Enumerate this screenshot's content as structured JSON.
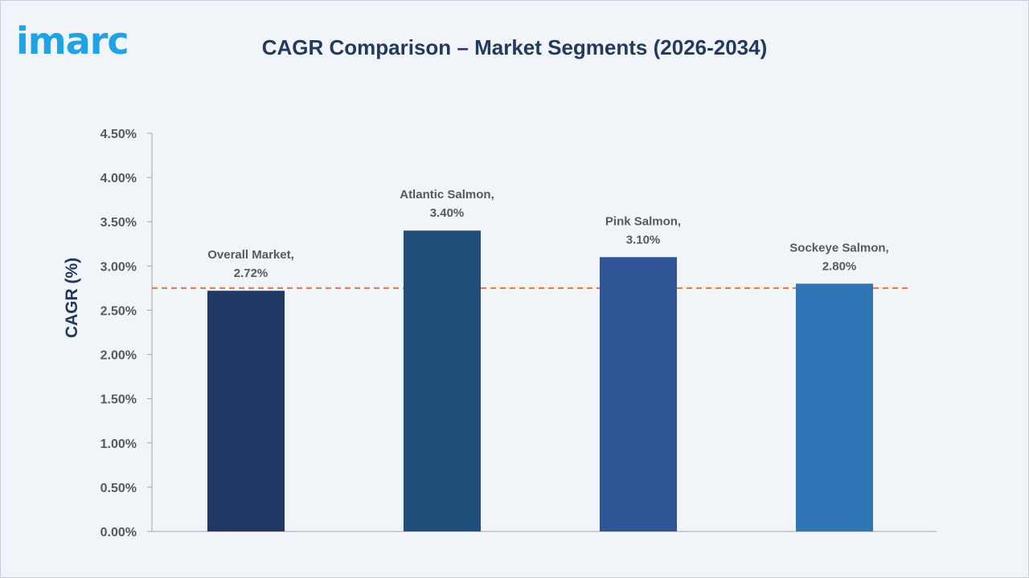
{
  "logo_text": "imarc",
  "title": "CAGR Comparison – Market Segments (2026-2034)",
  "chart_data": {
    "type": "bar",
    "title": "CAGR Comparison – Market Segments (2026-2034)",
    "xlabel": "",
    "ylabel": "CAGR (%)",
    "ylim": [
      0,
      4.5
    ],
    "yticks": [
      0,
      0.5,
      1.0,
      1.5,
      2.0,
      2.5,
      3.0,
      3.5,
      4.0,
      4.5
    ],
    "ytick_labels": [
      "0.00%",
      "0.50%",
      "1.00%",
      "1.50%",
      "2.00%",
      "2.50%",
      "3.00%",
      "3.50%",
      "4.00%",
      "4.50%"
    ],
    "categories": [
      "Overall Market",
      "Atlantic Salmon",
      "Pink Salmon",
      "Sockeye Salmon"
    ],
    "values": [
      2.72,
      3.4,
      3.1,
      2.8
    ],
    "data_labels": [
      [
        "Overall Market,",
        "2.72%"
      ],
      [
        "Atlantic Salmon,",
        "3.40%"
      ],
      [
        "Pink Salmon,",
        "3.10%"
      ],
      [
        "Sockeye Salmon,",
        "2.80%"
      ]
    ],
    "bar_colors": [
      "#1f3864",
      "#1f4e79",
      "#2f5597",
      "#2e75b6"
    ],
    "reference_line": {
      "value": 2.75,
      "style": "dashed",
      "color": "#e07b39"
    },
    "grid": false,
    "legend": "none"
  }
}
